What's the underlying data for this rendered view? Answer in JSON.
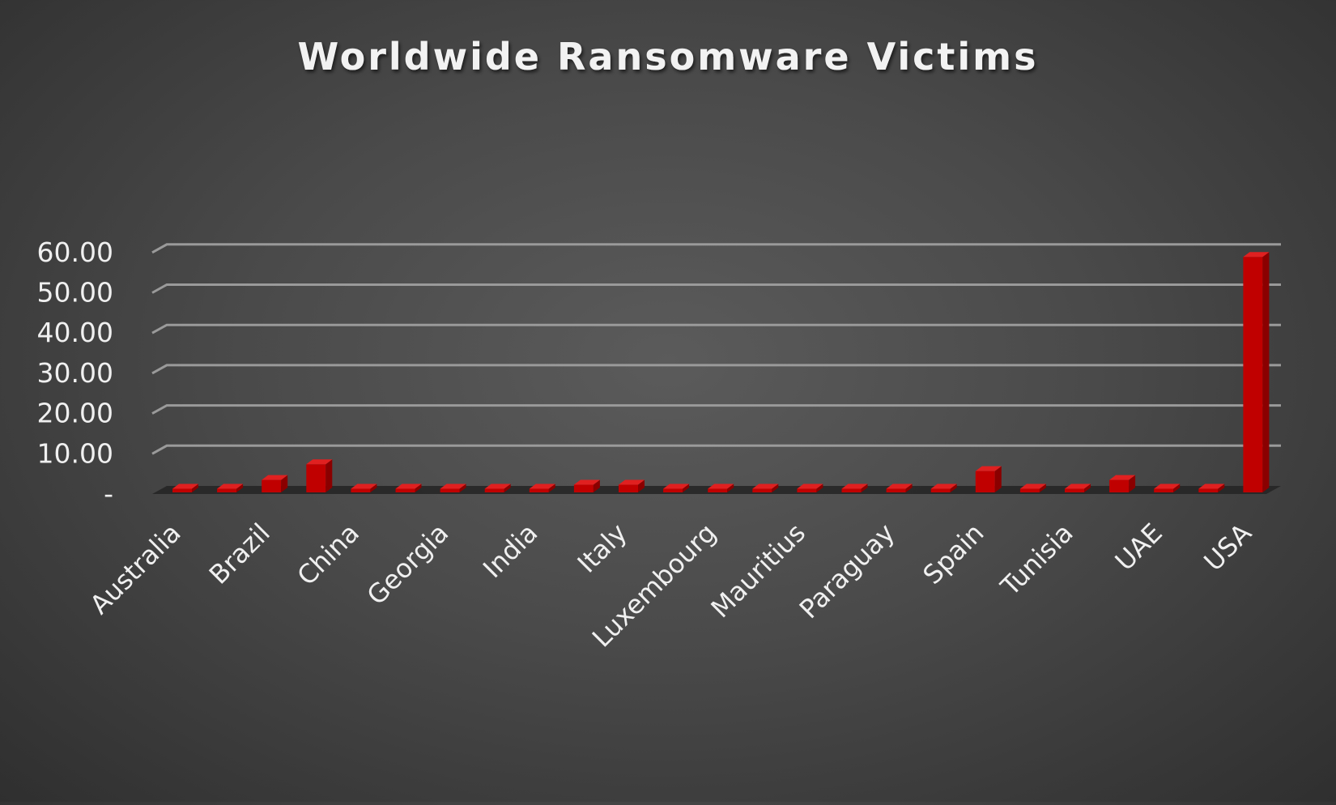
{
  "chart_data": {
    "type": "bar",
    "title": "Worldwide Ransomware Victims",
    "xlabel": "",
    "ylabel": "",
    "ylim": [
      0,
      60
    ],
    "y_ticks": [
      "-",
      "10.00",
      "20.00",
      "30.00",
      "40.00",
      "50.00",
      "60.00"
    ],
    "y_tick_values": [
      0,
      10,
      20,
      30,
      40,
      50,
      60
    ],
    "grid": true,
    "legend": "none",
    "bar_color": "#c00000",
    "categories": [
      "Australia",
      "",
      "Brazil",
      "",
      "China",
      "",
      "Georgia",
      "",
      "India",
      "",
      "Italy",
      "",
      "Luxembourg",
      "",
      "Mauritius",
      "",
      "Paraguay",
      "",
      "Spain",
      "",
      "Tunisia",
      "",
      "UAE",
      "",
      "USA"
    ],
    "values": [
      0.9,
      0.9,
      3.1,
      7.0,
      0.9,
      0.9,
      0.9,
      0.9,
      0.9,
      1.9,
      1.9,
      0.9,
      0.9,
      0.9,
      0.9,
      0.9,
      0.9,
      0.9,
      5.3,
      0.9,
      0.9,
      3.1,
      0.9,
      0.9,
      58.5
    ]
  }
}
